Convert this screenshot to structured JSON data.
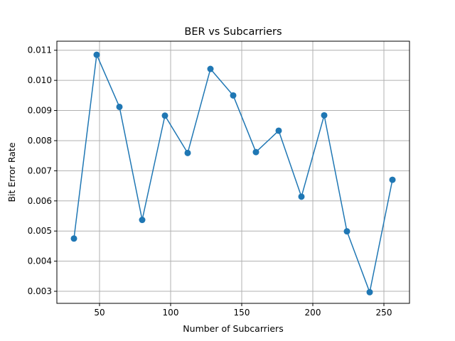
{
  "chart_data": {
    "type": "line",
    "title": "BER vs Subcarriers",
    "xlabel": "Number of Subcarriers",
    "ylabel": "Bit Error Rate",
    "xlim": [
      20,
      268
    ],
    "ylim": [
      0.0026,
      0.0113
    ],
    "xticks": [
      50,
      100,
      150,
      200,
      250
    ],
    "yticks": [
      0.003,
      0.004,
      0.005,
      0.006,
      0.007,
      0.008,
      0.009,
      0.01,
      0.011
    ],
    "ytick_labels": [
      "0.003",
      "0.004",
      "0.005",
      "0.006",
      "0.007",
      "0.008",
      "0.009",
      "0.010",
      "0.011"
    ],
    "grid": true,
    "series": [
      {
        "color": "#1f77b4",
        "marker": "circle",
        "x": [
          32,
          48,
          64,
          80,
          96,
          112,
          128,
          144,
          160,
          176,
          192,
          208,
          224,
          240,
          256
        ],
        "y": [
          0.00475,
          0.01085,
          0.00912,
          0.00537,
          0.00883,
          0.00759,
          0.01038,
          0.0095,
          0.00762,
          0.00833,
          0.00614,
          0.00884,
          0.00499,
          0.00297,
          0.0067
        ]
      }
    ]
  }
}
